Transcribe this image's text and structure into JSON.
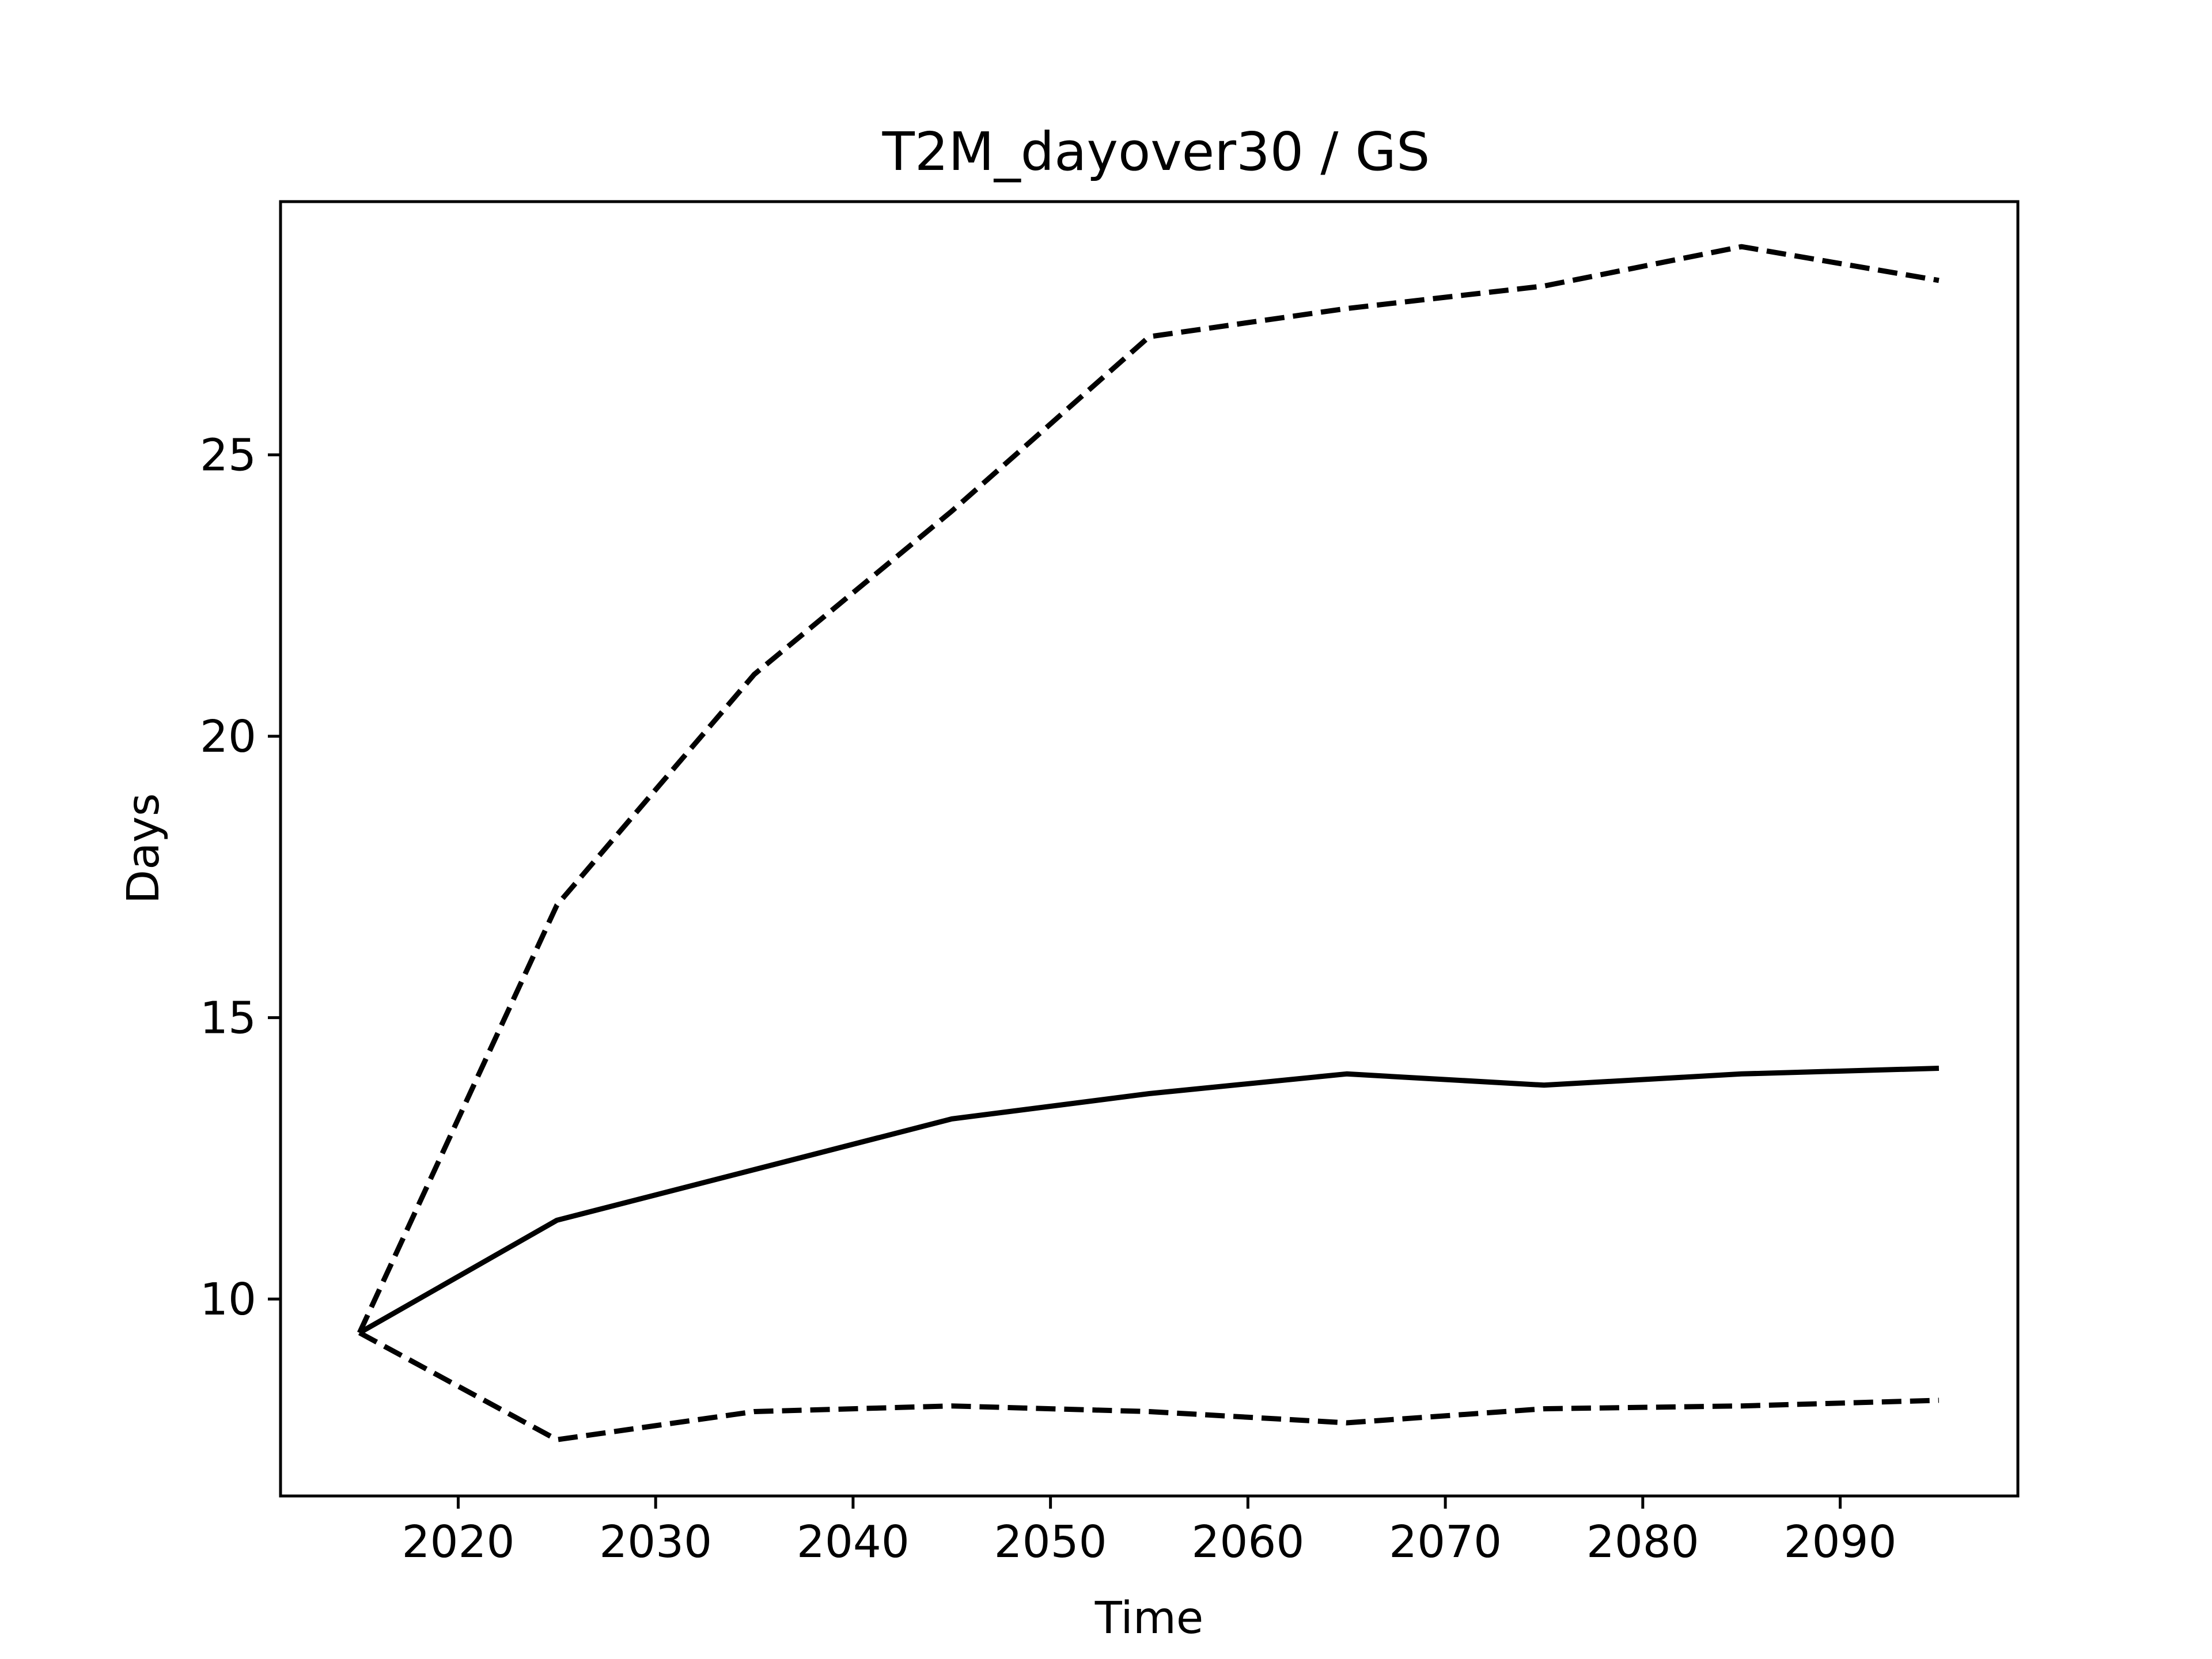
{
  "chart_data": {
    "type": "line",
    "title": "T2M_dayover30 / GS",
    "xlabel": "Time",
    "ylabel": "Days",
    "xlim": [
      2011,
      2099
    ],
    "ylim": [
      6.5,
      29.5
    ],
    "xticks": [
      2020,
      2030,
      2040,
      2050,
      2060,
      2070,
      2080,
      2090
    ],
    "yticks": [
      10,
      15,
      20,
      25
    ],
    "grid": false,
    "x": [
      2015,
      2025,
      2035,
      2045,
      2055,
      2065,
      2075,
      2085,
      2095
    ],
    "series": [
      {
        "style": "dashed",
        "color": "#000000",
        "values": [
          9.4,
          17.0,
          21.1,
          24.0,
          27.1,
          27.6,
          28.0,
          28.7,
          28.1
        ]
      },
      {
        "style": "solid",
        "color": "#000000",
        "values": [
          9.4,
          11.4,
          12.3,
          13.2,
          13.65,
          14.0,
          13.8,
          14.0,
          14.1
        ]
      },
      {
        "style": "dashed",
        "color": "#000000",
        "values": [
          9.4,
          7.5,
          8.0,
          8.1,
          8.0,
          7.8,
          8.05,
          8.1,
          8.2
        ]
      }
    ]
  }
}
